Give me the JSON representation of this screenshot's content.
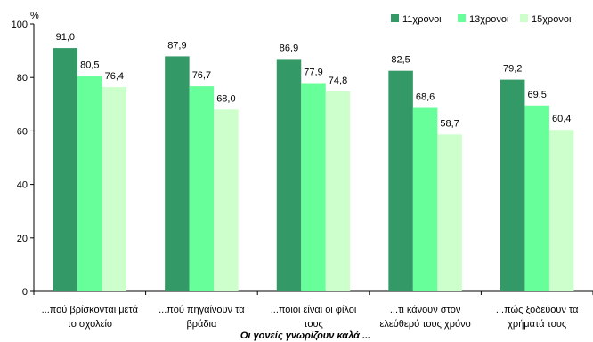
{
  "chart_data": {
    "type": "bar",
    "ylabel": "%",
    "xlabel": "Οι γονείς γνωρίζουν καλά ...",
    "ylim": [
      0,
      100
    ],
    "yticks": [
      0,
      20,
      40,
      60,
      80,
      100
    ],
    "grid": false,
    "legend_position": "top-right",
    "categories": [
      [
        "...πού βρίσκονται μετά",
        "το σχολείο"
      ],
      [
        "...πού πηγαίνουν τα",
        "βράδια"
      ],
      [
        "...ποιοι είναι οι φίλοι",
        "τους"
      ],
      [
        "...τι κάνουν στον",
        "ελεύθερό τους χρόνο"
      ],
      [
        "...πώς ξοδεύουν τα",
        "χρήματά τους"
      ]
    ],
    "series": [
      {
        "name": "11χρονοι",
        "color": "#339966",
        "values": [
          91.0,
          87.9,
          86.9,
          82.5,
          79.2
        ],
        "labels": [
          "91,0",
          "87,9",
          "86,9",
          "82,5",
          "79,2"
        ]
      },
      {
        "name": "13χρονοι",
        "color": "#66ff99",
        "values": [
          80.5,
          76.7,
          77.9,
          68.6,
          69.5
        ],
        "labels": [
          "80,5",
          "76,7",
          "77,9",
          "68,6",
          "69,5"
        ]
      },
      {
        "name": "15χρονοι",
        "color": "#ccffcc",
        "values": [
          76.4,
          68.0,
          74.8,
          58.7,
          60.4
        ],
        "labels": [
          "76,4",
          "68,0",
          "74,8",
          "58,7",
          "60,4"
        ]
      }
    ]
  }
}
